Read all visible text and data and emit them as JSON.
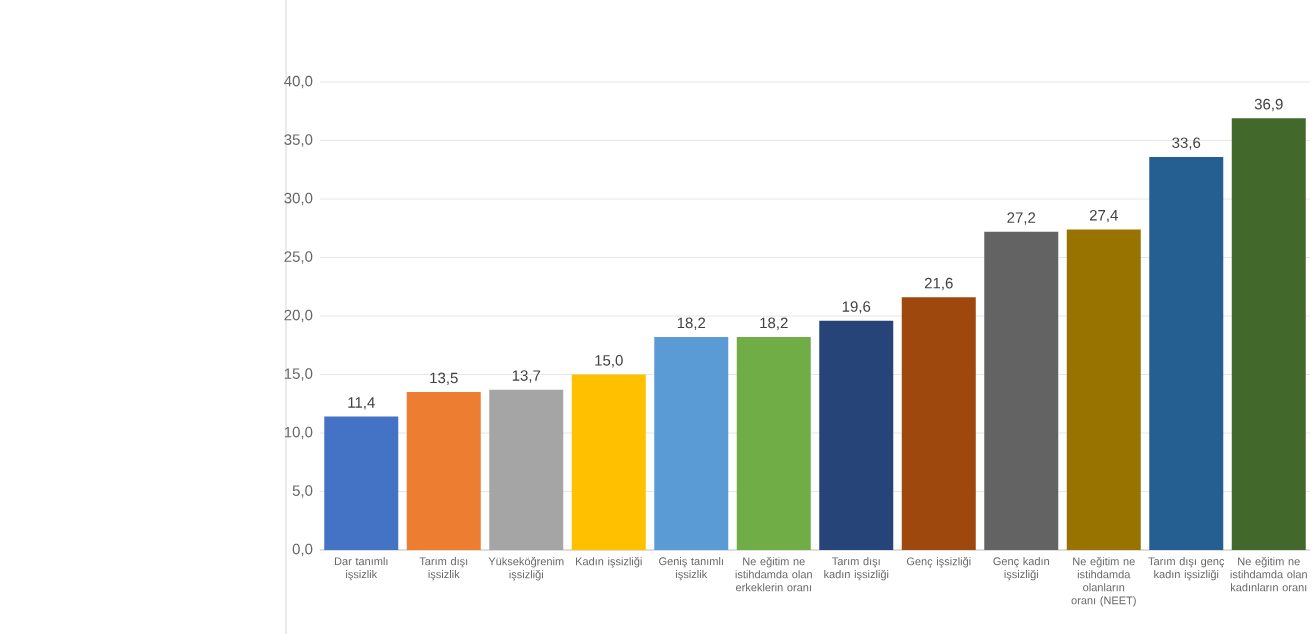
{
  "chart_data": {
    "type": "bar",
    "categories": [
      "Dar tanımlı işsizlik",
      "Tarım dışı işsizlik",
      "Yükseköğrenim işsizliği",
      "Kadın işsizliği",
      "Geniş tanımlı işsizlik",
      "Ne eğitim ne istihdamda olan erkeklerin oranı",
      "Tarım dışı kadın işsizliği",
      "Genç işsizliği",
      "Genç kadın işsizliği",
      "Ne eğitim ne istihdamda olanların oranı (NEET)",
      "Tarım dışı genç kadın işsizliği",
      "Ne eğitim ne istihdamda olan kadınların oranı"
    ],
    "values": [
      11.4,
      13.5,
      13.7,
      15.0,
      18.2,
      18.2,
      19.6,
      21.6,
      27.2,
      27.4,
      33.6,
      36.9
    ],
    "value_labels": [
      "11,4",
      "13,5",
      "13,7",
      "15,0",
      "18,2",
      "18,2",
      "19,6",
      "21,6",
      "27,2",
      "27,4",
      "33,6",
      "36,9"
    ],
    "colors": [
      "#4472c4",
      "#ed7d31",
      "#a5a5a5",
      "#ffc000",
      "#5b9bd5",
      "#70ad47",
      "#264478",
      "#9e480e",
      "#636363",
      "#997300",
      "#255e91",
      "#43682b"
    ],
    "ylim": [
      0,
      40
    ],
    "yticks": [
      {
        "value": 0,
        "label": "0,0"
      },
      {
        "value": 5,
        "label": "5,0"
      },
      {
        "value": 10,
        "label": "10,0"
      },
      {
        "value": 15,
        "label": "15,0"
      },
      {
        "value": 20,
        "label": "20,0"
      },
      {
        "value": 25,
        "label": "25,0"
      },
      {
        "value": 30,
        "label": "30,0"
      },
      {
        "value": 35,
        "label": "35,0"
      },
      {
        "value": 40,
        "label": "40,0"
      }
    ],
    "grid": "y"
  }
}
